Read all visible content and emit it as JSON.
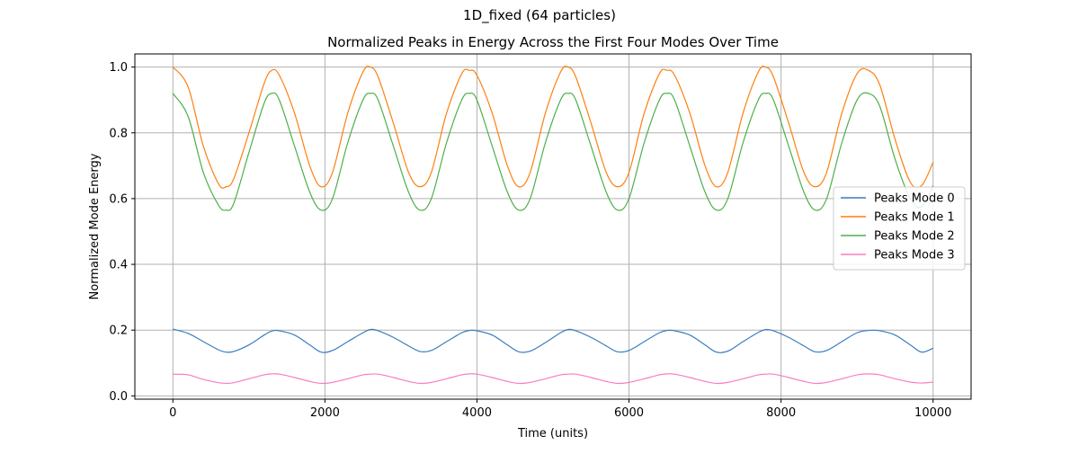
{
  "figure": {
    "suptitle": "1D_fixed (64 particles)"
  },
  "chart_data": {
    "type": "line",
    "title": "Normalized Peaks in Energy Across the First Four Modes Over Time",
    "xlabel": "Time (units)",
    "ylabel": "Normalized Mode Energy",
    "xlim": [
      -500,
      10500
    ],
    "ylim": [
      -0.01,
      1.04
    ],
    "xticks": [
      0,
      2000,
      4000,
      6000,
      8000,
      10000
    ],
    "xtick_labels": [
      "0",
      "2000",
      "4000",
      "6000",
      "8000",
      "10000"
    ],
    "yticks": [
      0.0,
      0.2,
      0.4,
      0.6,
      0.8,
      1.0
    ],
    "ytick_labels": [
      "0.0",
      "0.2",
      "0.4",
      "0.6",
      "0.8",
      "1.0"
    ],
    "grid": true,
    "legend_position": "center-right",
    "x": [
      0,
      200,
      400,
      600,
      700,
      800,
      1000,
      1200,
      1300,
      1400,
      1600,
      1800,
      1950,
      2100,
      2300,
      2500,
      2600,
      2700,
      2900,
      3100,
      3250,
      3400,
      3600,
      3800,
      3900,
      4000,
      4200,
      4400,
      4550,
      4700,
      4900,
      5100,
      5200,
      5300,
      5500,
      5700,
      5850,
      6000,
      6200,
      6400,
      6500,
      6600,
      6800,
      7000,
      7150,
      7300,
      7500,
      7700,
      7800,
      7900,
      8100,
      8300,
      8450,
      8600,
      8800,
      9000,
      9150,
      9300,
      9500,
      9700,
      9850,
      10000
    ],
    "series": [
      {
        "name": "Peaks Mode 0",
        "color": "#3a7ebf",
        "values": [
          0.203,
          0.19,
          0.165,
          0.14,
          0.133,
          0.135,
          0.155,
          0.185,
          0.197,
          0.198,
          0.185,
          0.155,
          0.133,
          0.138,
          0.165,
          0.192,
          0.202,
          0.198,
          0.178,
          0.152,
          0.135,
          0.138,
          0.165,
          0.192,
          0.199,
          0.198,
          0.185,
          0.155,
          0.134,
          0.136,
          0.162,
          0.192,
          0.202,
          0.198,
          0.178,
          0.152,
          0.134,
          0.138,
          0.165,
          0.192,
          0.199,
          0.198,
          0.185,
          0.155,
          0.133,
          0.136,
          0.165,
          0.193,
          0.202,
          0.198,
          0.178,
          0.152,
          0.134,
          0.138,
          0.165,
          0.192,
          0.199,
          0.198,
          0.185,
          0.155,
          0.133,
          0.145
        ]
      },
      {
        "name": "Peaks Mode 1",
        "color": "#ff7f0e",
        "values": [
          1.0,
          0.94,
          0.76,
          0.645,
          0.636,
          0.66,
          0.8,
          0.95,
          0.99,
          0.975,
          0.86,
          0.7,
          0.636,
          0.68,
          0.86,
          0.985,
          1.0,
          0.97,
          0.83,
          0.68,
          0.636,
          0.68,
          0.86,
          0.98,
          0.99,
          0.975,
          0.86,
          0.7,
          0.636,
          0.68,
          0.86,
          0.985,
          1.0,
          0.97,
          0.83,
          0.68,
          0.636,
          0.68,
          0.86,
          0.98,
          0.99,
          0.975,
          0.86,
          0.7,
          0.636,
          0.68,
          0.86,
          0.985,
          1.0,
          0.97,
          0.83,
          0.68,
          0.636,
          0.68,
          0.86,
          0.98,
          0.99,
          0.945,
          0.78,
          0.65,
          0.64,
          0.71
        ]
      },
      {
        "name": "Peaks Mode 2",
        "color": "#4daf4a",
        "values": [
          0.92,
          0.85,
          0.68,
          0.58,
          0.565,
          0.585,
          0.74,
          0.89,
          0.92,
          0.9,
          0.76,
          0.62,
          0.565,
          0.6,
          0.77,
          0.9,
          0.92,
          0.9,
          0.76,
          0.62,
          0.565,
          0.6,
          0.77,
          0.9,
          0.92,
          0.9,
          0.76,
          0.62,
          0.565,
          0.6,
          0.77,
          0.9,
          0.92,
          0.9,
          0.76,
          0.62,
          0.565,
          0.6,
          0.77,
          0.9,
          0.92,
          0.9,
          0.76,
          0.62,
          0.565,
          0.6,
          0.77,
          0.9,
          0.92,
          0.9,
          0.76,
          0.62,
          0.565,
          0.6,
          0.77,
          0.9,
          0.92,
          0.88,
          0.72,
          0.6,
          0.575,
          0.64
        ]
      },
      {
        "name": "Peaks Mode 3",
        "color": "#f77fbf",
        "values": [
          0.066,
          0.064,
          0.05,
          0.04,
          0.038,
          0.04,
          0.052,
          0.064,
          0.067,
          0.066,
          0.056,
          0.044,
          0.038,
          0.041,
          0.052,
          0.064,
          0.066,
          0.066,
          0.056,
          0.044,
          0.038,
          0.041,
          0.052,
          0.064,
          0.067,
          0.066,
          0.056,
          0.044,
          0.038,
          0.041,
          0.052,
          0.064,
          0.066,
          0.066,
          0.056,
          0.044,
          0.038,
          0.041,
          0.052,
          0.064,
          0.067,
          0.066,
          0.056,
          0.044,
          0.038,
          0.041,
          0.052,
          0.064,
          0.066,
          0.066,
          0.056,
          0.044,
          0.038,
          0.041,
          0.052,
          0.064,
          0.067,
          0.064,
          0.052,
          0.042,
          0.039,
          0.042
        ]
      }
    ]
  }
}
